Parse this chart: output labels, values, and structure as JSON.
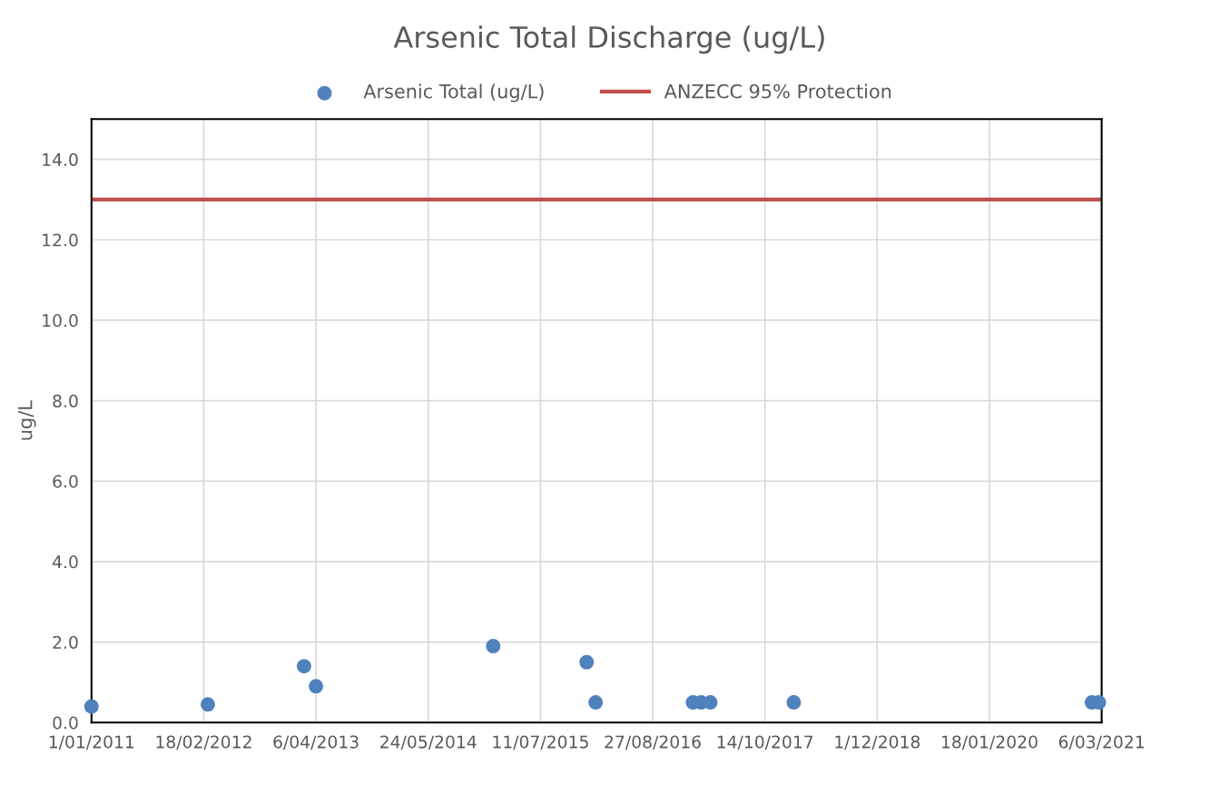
{
  "chart_data": {
    "type": "scatter",
    "title": "Arsenic Total Discharge (ug/L)",
    "ylabel": "ug/L",
    "series": [
      {
        "name": "Arsenic Total (ug/L)",
        "color": "#4f81bd",
        "marker": "circle",
        "x": [
          "2011-01-01",
          "2012-03-04",
          "2013-02-21",
          "2013-04-06",
          "2015-01-18",
          "2015-12-28",
          "2016-01-30",
          "2017-01-22",
          "2017-02-21",
          "2017-03-27",
          "2018-01-28",
          "2021-01-29",
          "2021-02-24"
        ],
        "values": [
          0.4,
          0.45,
          1.4,
          0.9,
          1.9,
          1.5,
          0.5,
          0.5,
          0.5,
          0.5,
          0.5,
          0.5,
          0.5
        ]
      },
      {
        "name": "ANZECC 95% Protection",
        "type": "line",
        "color": "#c0504d",
        "x": [
          "2011-01-01",
          "2021-03-06"
        ],
        "values": [
          13,
          13
        ]
      }
    ],
    "xlim": [
      "2011-01-01",
      "2021-03-06"
    ],
    "xticks": [
      {
        "value": "2011-01-01",
        "label": "1/01/2011"
      },
      {
        "value": "2012-02-18",
        "label": "18/02/2012"
      },
      {
        "value": "2013-04-06",
        "label": "6/04/2013"
      },
      {
        "value": "2014-05-24",
        "label": "24/05/2014"
      },
      {
        "value": "2015-07-11",
        "label": "11/07/2015"
      },
      {
        "value": "2016-08-27",
        "label": "27/08/2016"
      },
      {
        "value": "2017-10-14",
        "label": "14/10/2017"
      },
      {
        "value": "2018-12-01",
        "label": "1/12/2018"
      },
      {
        "value": "2020-01-18",
        "label": "18/01/2020"
      },
      {
        "value": "2021-03-06",
        "label": "6/03/2021"
      }
    ],
    "ylim": [
      0,
      15
    ],
    "yticks": [
      {
        "value": 0,
        "label": "0.0"
      },
      {
        "value": 2,
        "label": "2.0"
      },
      {
        "value": 4,
        "label": "4.0"
      },
      {
        "value": 6,
        "label": "6.0"
      },
      {
        "value": 8,
        "label": "8.0"
      },
      {
        "value": 10,
        "label": "10.0"
      },
      {
        "value": 12,
        "label": "12.0"
      },
      {
        "value": 14,
        "label": "14.0"
      }
    ],
    "grid": true,
    "legend": "top"
  }
}
